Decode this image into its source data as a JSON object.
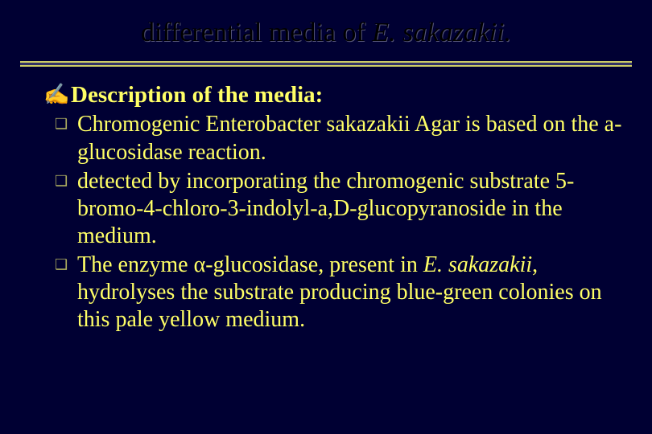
{
  "slide": {
    "background_color": "#000033",
    "text_color": "#ffff66",
    "title_color": "#000000",
    "title_shadow": "#555577",
    "rule_light": "#cccc66",
    "rule_dark": "#333366",
    "bullet_hand_color": "#cccc66",
    "bullet_box_color": "#b0b060",
    "font_family": "Times New Roman",
    "title_fontsize": 34,
    "body_fontsize": 28
  },
  "title": {
    "plain": "differential media of ",
    "italic": "E. sakazakii."
  },
  "bullets": {
    "hand_glyph": "✍",
    "box_glyph": "❑",
    "heading": "Description of the media:",
    "items": [
      " Chromogenic Enterobacter sakazakii Agar is based on the a-glucosidase reaction.",
      "detected by incorporating the chromogenic substrate 5-bromo-4-chloro-3-indolyl-a,D-glucopyranoside in the medium."
    ],
    "item3_a": "The enzyme α-glucosidase, present in ",
    "item3_i": "E. sakazakii",
    "item3_b": ", hydrolyses the substrate producing blue-green colonies on this pale yellow medium."
  }
}
